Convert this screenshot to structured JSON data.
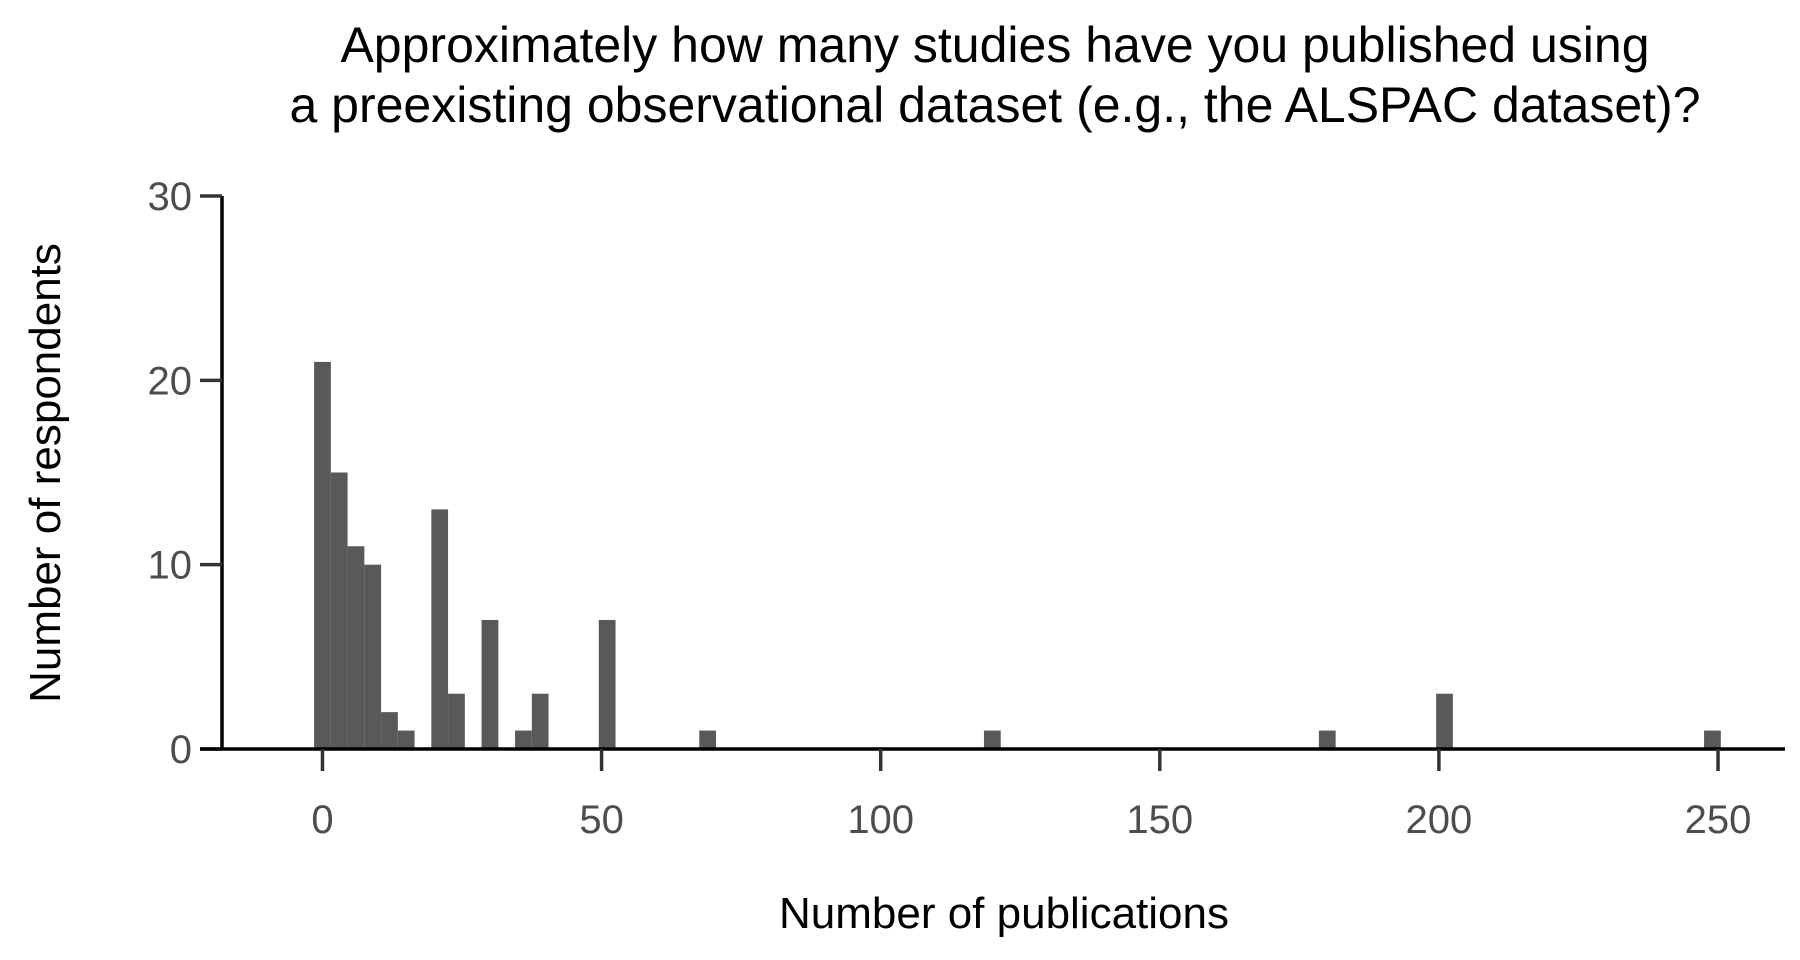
{
  "chart_data": {
    "type": "bar",
    "title_lines": [
      "Approximately how many studies have you published using",
      "a preexisting observational dataset (e.g., the ALSPAC dataset)?"
    ],
    "xlabel": "Number of publications",
    "ylabel": "Number of respondents",
    "xlim": [
      -18,
      262
    ],
    "ylim": [
      0,
      30
    ],
    "x_ticks": [
      0,
      50,
      100,
      150,
      200,
      250
    ],
    "y_ticks": [
      0,
      10,
      20,
      30
    ],
    "bin_width": 3,
    "color": "#595959",
    "grid": false,
    "legend": "none",
    "bins": [
      {
        "x": 0,
        "count": 21
      },
      {
        "x": 3,
        "count": 15
      },
      {
        "x": 6,
        "count": 11
      },
      {
        "x": 9,
        "count": 10
      },
      {
        "x": 12,
        "count": 2
      },
      {
        "x": 15,
        "count": 1
      },
      {
        "x": 21,
        "count": 13
      },
      {
        "x": 24,
        "count": 3
      },
      {
        "x": 30,
        "count": 7
      },
      {
        "x": 36,
        "count": 1
      },
      {
        "x": 39,
        "count": 3
      },
      {
        "x": 51,
        "count": 7
      },
      {
        "x": 69,
        "count": 1
      },
      {
        "x": 120,
        "count": 1
      },
      {
        "x": 180,
        "count": 1
      },
      {
        "x": 201,
        "count": 3
      },
      {
        "x": 249,
        "count": 1
      }
    ]
  }
}
